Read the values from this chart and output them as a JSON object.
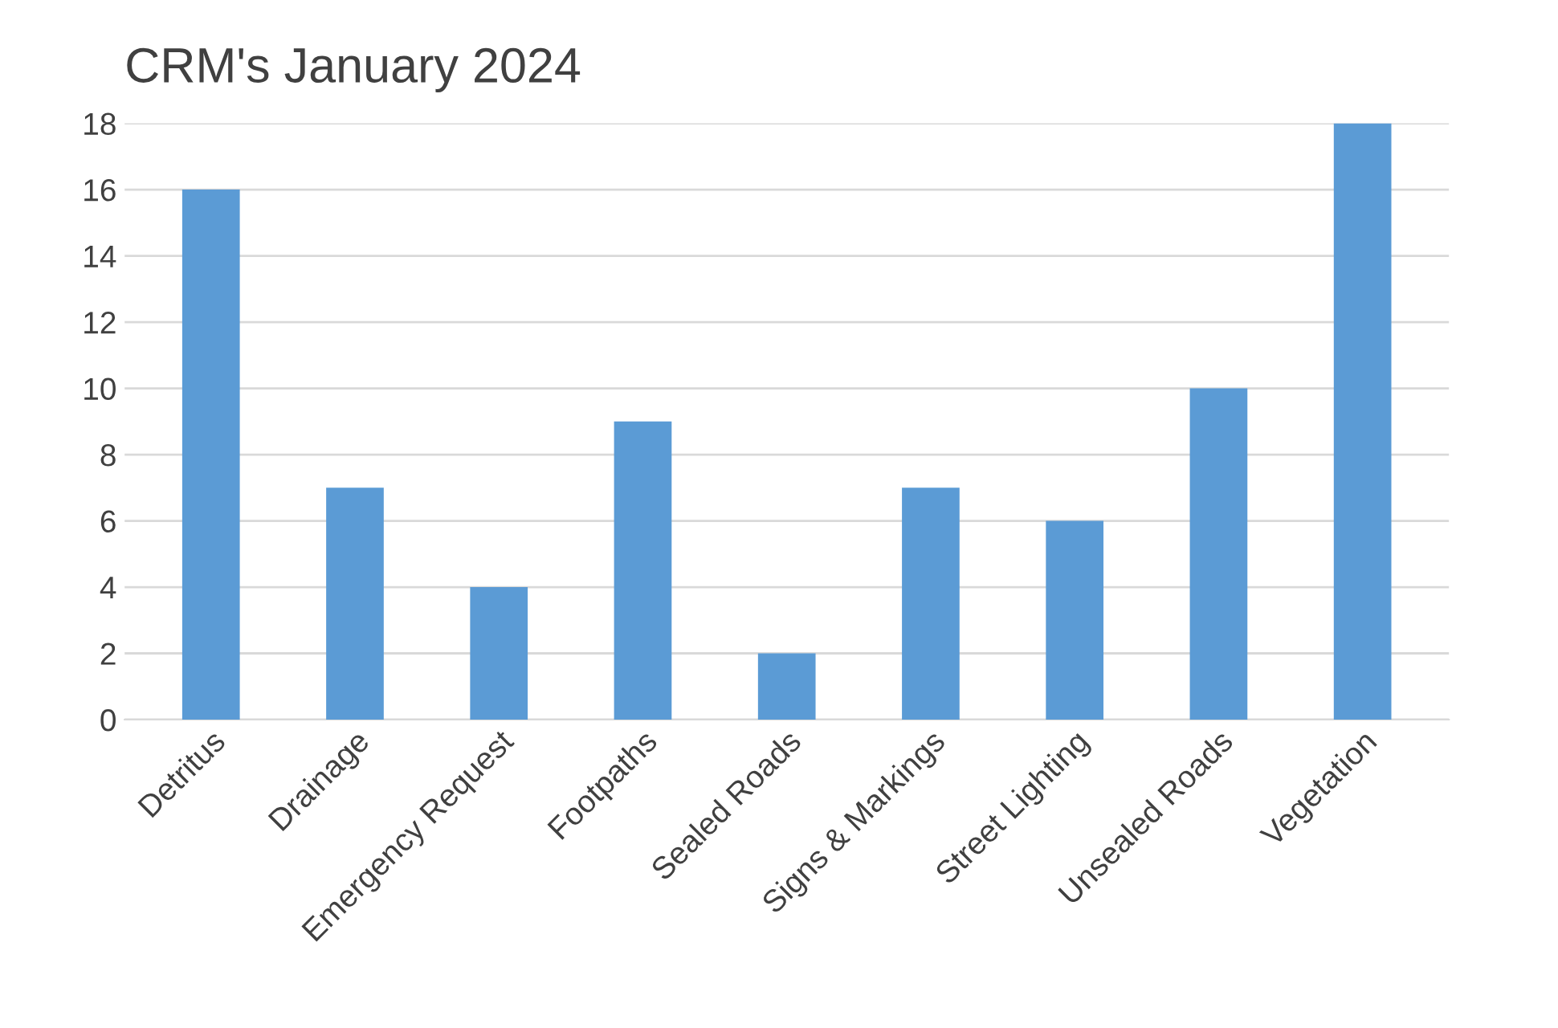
{
  "chart_data": {
    "type": "bar",
    "title": "CRM's January 2024",
    "categories": [
      "Detritus",
      "Drainage",
      "Emergency Request",
      "Footpaths",
      "Sealed Roads",
      "Signs & Markings",
      "Street Lighting",
      "Unsealed Roads",
      "Vegetation"
    ],
    "values": [
      16,
      7,
      4,
      9,
      2,
      7,
      6,
      10,
      18
    ],
    "color": "#5b9bd5",
    "ylim": [
      0,
      18
    ],
    "yticks": [
      0,
      2,
      4,
      6,
      8,
      10,
      12,
      14,
      16,
      18
    ],
    "grid": "y"
  }
}
